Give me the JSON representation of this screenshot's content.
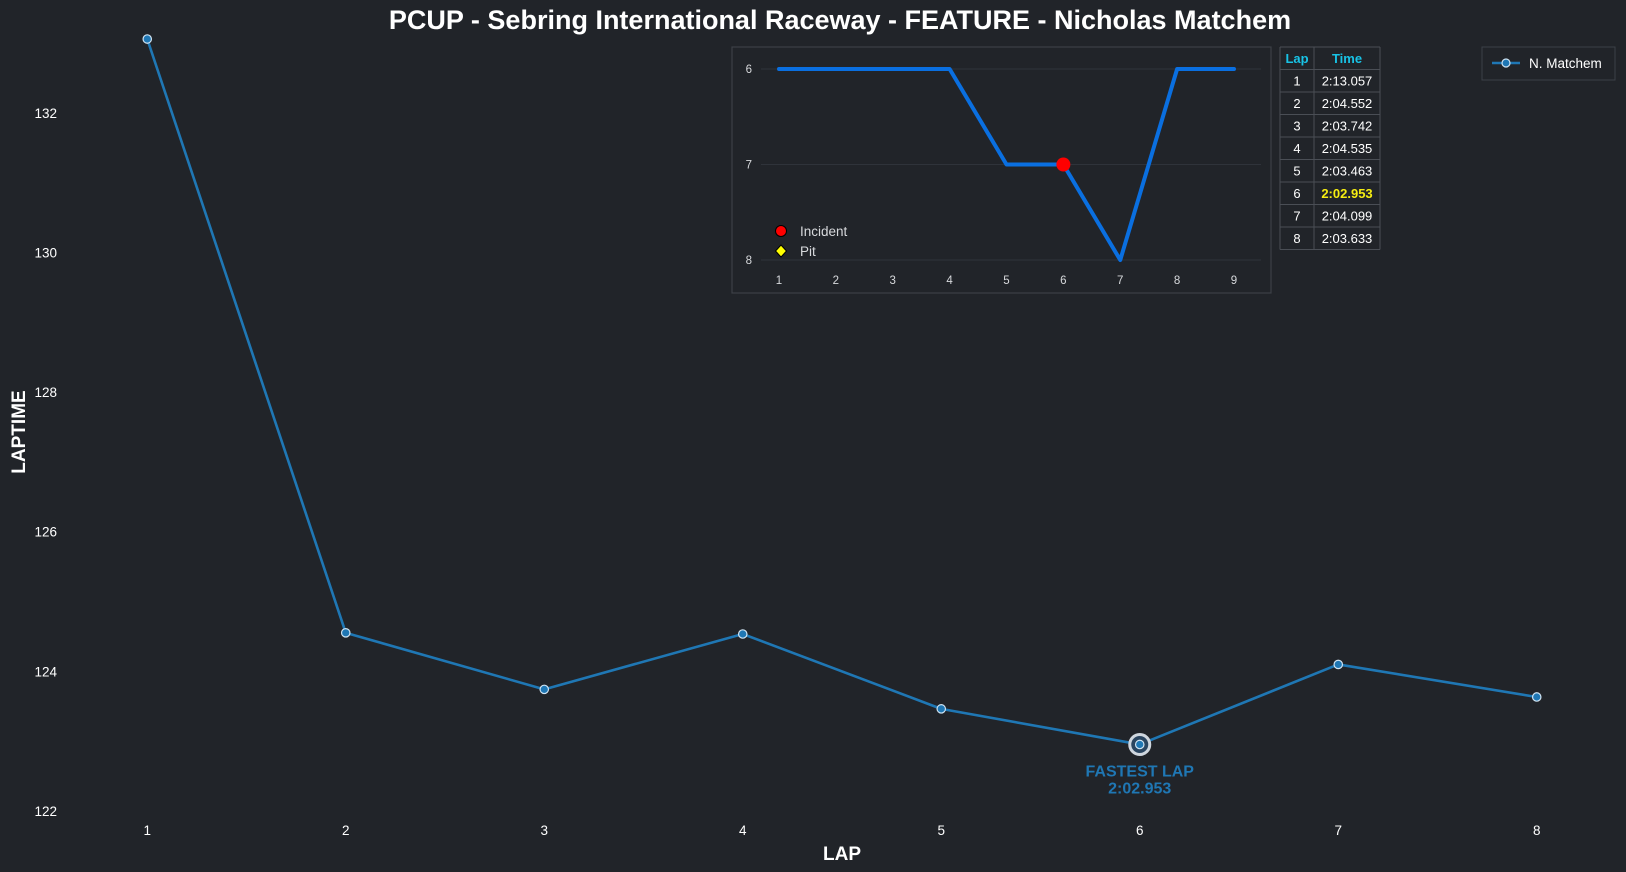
{
  "chart_data": [
    {
      "type": "line",
      "title": "PCUP - Sebring International Raceway - FEATURE - Nicholas Matchem",
      "xlabel": "LAP",
      "ylabel": "LAPTIME",
      "x": [
        1,
        2,
        3,
        4,
        5,
        6,
        7,
        8
      ],
      "series": [
        {
          "name": "N. Matchem",
          "values": [
            133.057,
            124.552,
            123.742,
            124.535,
            123.463,
            122.953,
            124.099,
            123.633
          ],
          "color": "#1f77b4"
        }
      ],
      "xlim": [
        0.5,
        8.5
      ],
      "ylim": [
        122,
        133
      ],
      "y_ticks": [
        122,
        124,
        126,
        128,
        130,
        132
      ],
      "x_ticks": [
        1,
        2,
        3,
        4,
        5,
        6,
        7,
        8
      ],
      "grid": false,
      "legend_position": "top-right",
      "annotation": {
        "x": 6,
        "y": 122.953,
        "line1": "FASTEST LAP",
        "line2": "2:02.953"
      }
    },
    {
      "type": "line",
      "title": "",
      "x": [
        1,
        2,
        3,
        4,
        5,
        6,
        7,
        8,
        9
      ],
      "series": [
        {
          "values": [
            6,
            6,
            6,
            6,
            7,
            7,
            8,
            6,
            6
          ],
          "color": "#0a6fe0"
        }
      ],
      "y_inverted": true,
      "ylim": [
        6,
        8
      ],
      "y_ticks": [
        6,
        7,
        8
      ],
      "x_ticks": [
        1,
        2,
        3,
        4,
        5,
        6,
        7,
        8,
        9
      ],
      "grid": true,
      "incidents": [
        {
          "x": 6,
          "y": 7
        }
      ],
      "pits": [],
      "legend": [
        {
          "label": "Incident",
          "marker": "circle",
          "color": "#ff0000"
        },
        {
          "label": "Pit",
          "marker": "diamond",
          "color": "#ffff00"
        }
      ],
      "legend_position": "lower-left"
    },
    {
      "type": "table",
      "headers": [
        "Lap",
        "Time"
      ],
      "rows": [
        [
          "1",
          "2:13.057"
        ],
        [
          "2",
          "2:04.552"
        ],
        [
          "3",
          "2:03.742"
        ],
        [
          "4",
          "2:04.535"
        ],
        [
          "5",
          "2:03.463"
        ],
        [
          "6",
          "2:02.953"
        ],
        [
          "7",
          "2:04.099"
        ],
        [
          "8",
          "2:03.633"
        ]
      ],
      "highlight_row": 5,
      "header_color": "#18c3e6",
      "highlight_color": "#f5ed12"
    }
  ]
}
